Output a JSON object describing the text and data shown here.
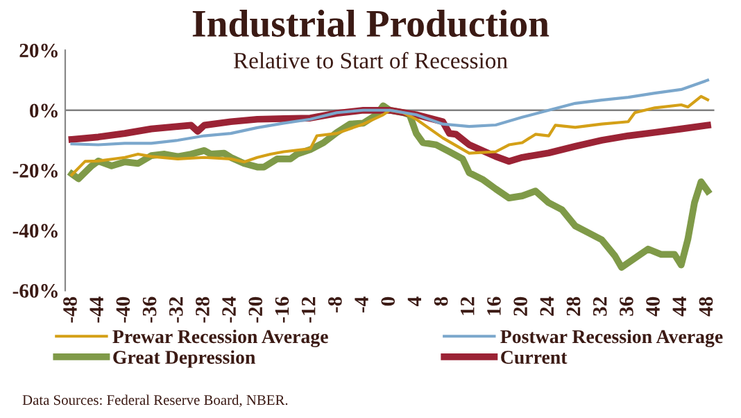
{
  "chart_data": {
    "type": "line",
    "title": "Industrial Production",
    "subtitle": "Relative to Start of Recession",
    "xlim": [
      -49,
      49
    ],
    "xticks": [
      -48,
      -44,
      -40,
      -36,
      -32,
      -28,
      -24,
      -20,
      -16,
      -12,
      -8,
      -4,
      0,
      4,
      8,
      12,
      16,
      20,
      24,
      28,
      32,
      36,
      40,
      44,
      48
    ],
    "ylim": [
      -60,
      20
    ],
    "yticks": [
      {
        "value": 20,
        "label": "20%"
      },
      {
        "value": 0,
        "label": "0%"
      },
      {
        "value": -20,
        "label": "-20%"
      },
      {
        "value": -40,
        "label": "-40%"
      },
      {
        "value": -60,
        "label": "-60%"
      }
    ],
    "grid": false,
    "legend": "bottom",
    "ref_lines": [
      {
        "axis": "y",
        "value": 0,
        "color": "#808080"
      }
    ],
    "annotations": [
      "Data Sources: Federal Reserve Board, NBER."
    ],
    "series": [
      {
        "name": "Prewar Recession Average",
        "color": "#d4a017",
        "x": [
          -48,
          -46,
          -44,
          -40,
          -38,
          -36,
          -32,
          -28,
          -24,
          -22,
          -20,
          -18,
          -16,
          -12,
          -11,
          -8,
          -4,
          -1,
          0,
          2,
          4,
          8,
          12,
          16,
          18,
          20,
          22,
          24,
          25,
          28,
          32,
          36,
          37,
          40,
          44,
          45,
          47,
          48
        ],
        "values": [
          -21.5,
          -17,
          -16.9,
          -15.7,
          -14.6,
          -15.4,
          -16.2,
          -15.7,
          -16.2,
          -17.2,
          -15.7,
          -14.6,
          -13.8,
          -12.8,
          -8.5,
          -7.7,
          -4.6,
          -1.5,
          0,
          -0.8,
          -3,
          -9.2,
          -14.3,
          -13.8,
          -11.5,
          -10.8,
          -8,
          -8.5,
          -5,
          -5.7,
          -4.6,
          -3.8,
          -0.8,
          0.8,
          1.8,
          1.1,
          4.6,
          3.5
        ]
      },
      {
        "name": "Postwar Recession Average",
        "color": "#7ba7cc",
        "x": [
          -48,
          -44,
          -40,
          -36,
          -32,
          -28,
          -24,
          -20,
          -16,
          -12,
          -8,
          -4,
          0,
          4,
          8,
          12,
          16,
          20,
          24,
          28,
          32,
          36,
          40,
          44,
          48
        ],
        "values": [
          -11.2,
          -11.5,
          -11,
          -11,
          -10,
          -8.5,
          -7.7,
          -5.8,
          -4.3,
          -3,
          -0.8,
          0,
          0,
          -1.5,
          -4.6,
          -5.4,
          -4.9,
          -2.3,
          0,
          2.3,
          3.4,
          4.3,
          5.7,
          6.9,
          10
        ]
      },
      {
        "name": "Great Depression",
        "color": "#7f9a48",
        "x": [
          -48,
          -47,
          -45,
          -44,
          -42,
          -40,
          -38,
          -36,
          -34,
          -32,
          -30,
          -28,
          -27,
          -25,
          -24,
          -22,
          -20,
          -19,
          -17,
          -15,
          -14,
          -12,
          -10,
          -8,
          -6,
          -4,
          -2,
          -1,
          0,
          2,
          3,
          4,
          5,
          7,
          9,
          11,
          12,
          14,
          16,
          18,
          20,
          22,
          24,
          26,
          28,
          30,
          32,
          34,
          35,
          38,
          39,
          41,
          43,
          44,
          45,
          46,
          47,
          48
        ],
        "values": [
          -21.2,
          -22.8,
          -18.5,
          -16.9,
          -18.5,
          -17.2,
          -17.7,
          -15.1,
          -14.6,
          -15.4,
          -14.6,
          -13.4,
          -14.6,
          -14.3,
          -15.7,
          -17.7,
          -18.9,
          -18.9,
          -16.2,
          -16.2,
          -14.6,
          -13.1,
          -10.8,
          -7.4,
          -4.6,
          -4.3,
          -1.5,
          1.5,
          0,
          -0.8,
          -1.5,
          -7.7,
          -10.8,
          -11.5,
          -13.8,
          -16.2,
          -20.8,
          -23,
          -26.2,
          -29.2,
          -28.5,
          -26.9,
          -30.8,
          -33.1,
          -38.5,
          -40.8,
          -43.1,
          -48.5,
          -52.3,
          -47.7,
          -46.2,
          -48,
          -48,
          -51.5,
          -43,
          -30.8,
          -23.8,
          -26.9
        ]
      },
      {
        "name": "Current",
        "color": "#9b2335",
        "x": [
          -48,
          -44,
          -40,
          -36,
          -32,
          -30,
          -29,
          -28,
          -24,
          -20,
          -16,
          -12,
          -8,
          -4,
          0,
          4,
          8,
          9,
          10,
          12,
          16,
          18,
          20,
          24,
          28,
          32,
          36,
          40,
          44,
          48
        ],
        "values": [
          -9.7,
          -8.9,
          -7.7,
          -6.2,
          -5.4,
          -5,
          -7,
          -5,
          -3.8,
          -3,
          -2.8,
          -2.6,
          -1,
          0,
          0,
          -1.5,
          -3.8,
          -7.7,
          -8,
          -11.5,
          -15.4,
          -17,
          -15.7,
          -14.2,
          -12,
          -10,
          -8.5,
          -7.4,
          -6.2,
          -5
        ]
      }
    ]
  }
}
